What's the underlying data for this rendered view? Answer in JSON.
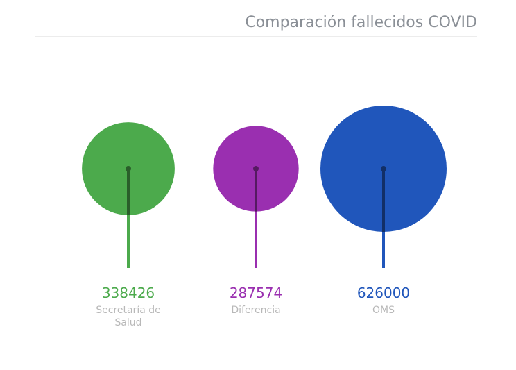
{
  "chart_data": {
    "type": "bubble",
    "title": "Comparación fallecidos COVID",
    "grid": false,
    "legend": "none",
    "items": [
      {
        "label_lines": [
          "Secretaría de",
          "Salud"
        ],
        "value": 338426,
        "color": "#4caa4c"
      },
      {
        "label_lines": [
          "Diferencia"
        ],
        "value": 287574,
        "color": "#9a2fb0"
      },
      {
        "label_lines": [
          "OMS"
        ],
        "value": 626000,
        "color": "#2056bb"
      }
    ]
  }
}
